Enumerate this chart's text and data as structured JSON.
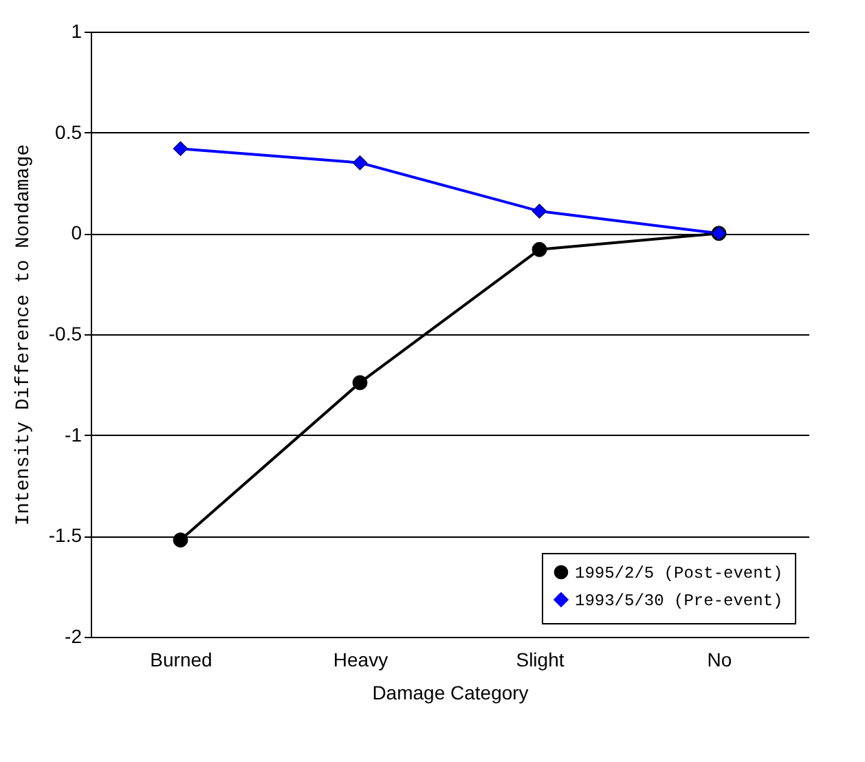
{
  "chart_data": {
    "type": "line",
    "xlabel": "Damage Category",
    "ylabel": "Intensity Difference to Nondamage",
    "categories": [
      "Burned",
      "Heavy",
      "Slight",
      "No"
    ],
    "series": [
      {
        "name": "1995/2/5 (Post-event)",
        "color": "#000000",
        "marker": "circle",
        "values": [
          -1.52,
          -0.74,
          -0.08,
          0
        ]
      },
      {
        "name": "1993/5/30 (Pre-event)",
        "color": "#0000ff",
        "marker": "diamond",
        "values": [
          0.42,
          0.35,
          0.11,
          0
        ]
      }
    ],
    "ylim": [
      -2,
      1
    ],
    "yticks": [
      -2,
      -1.5,
      -1,
      -0.5,
      0,
      0.5,
      1
    ],
    "grid": "y",
    "legend": "bottom right"
  }
}
